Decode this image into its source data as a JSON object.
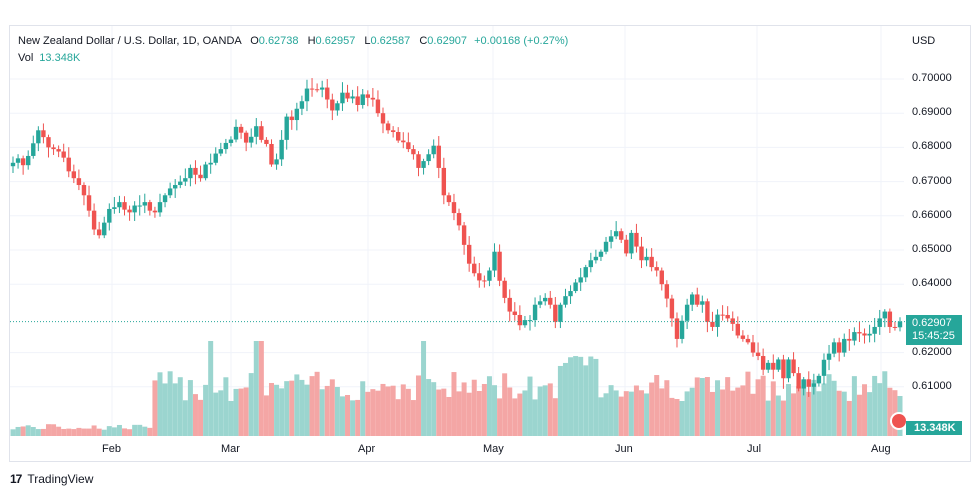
{
  "header": {
    "symbol": "New Zealand Dollar / U.S. Dollar, 1D, OANDA",
    "o_label": "O",
    "o_value": "0.62738",
    "h_label": "H",
    "h_value": "0.62957",
    "l_label": "L",
    "l_value": "0.62587",
    "c_label": "C",
    "c_value": "0.62907",
    "change": "+0.00168 (+0.27%)"
  },
  "volume": {
    "label": "Vol",
    "value": "13.348K"
  },
  "axis": {
    "currency": "USD",
    "y_ticks": [
      "0.70000",
      "0.69000",
      "0.68000",
      "0.67000",
      "0.66000",
      "0.65000",
      "0.64000",
      "0.62000",
      "0.61000"
    ],
    "x_ticks": [
      "Feb",
      "Mar",
      "Apr",
      "May",
      "Jun",
      "Jul",
      "Aug"
    ]
  },
  "price_tag": {
    "price": "0.62907",
    "countdown": "15:45:25"
  },
  "volume_tag": "13.348K",
  "brand": {
    "logo": "17",
    "name": "TradingView"
  },
  "colors": {
    "up": "#26a69a",
    "down": "#ef5350",
    "up_vol": "#9bd5cf",
    "down_vol": "#f4a6a5",
    "grid": "#f0f3fa"
  },
  "chart_data": {
    "type": "candlestick",
    "ylim": [
      0.6055,
      0.7045
    ],
    "y_ticks": [
      0.7,
      0.69,
      0.68,
      0.67,
      0.66,
      0.65,
      0.64,
      0.62,
      0.61
    ],
    "last_close": 0.62907,
    "closes": [
      0.6755,
      0.6768,
      0.6748,
      0.6775,
      0.6812,
      0.685,
      0.683,
      0.68,
      0.6795,
      0.6788,
      0.677,
      0.673,
      0.671,
      0.669,
      0.666,
      0.6615,
      0.656,
      0.6543,
      0.658,
      0.662,
      0.6625,
      0.664,
      0.6618,
      0.661,
      0.663,
      0.663,
      0.664,
      0.6615,
      0.661,
      0.664,
      0.666,
      0.668,
      0.669,
      0.67,
      0.671,
      0.674,
      0.672,
      0.671,
      0.675,
      0.6755,
      0.6782,
      0.6795,
      0.6813,
      0.6823,
      0.686,
      0.6843,
      0.6814,
      0.6831,
      0.6862,
      0.6822,
      0.681,
      0.675,
      0.6765,
      0.6822,
      0.689,
      0.688,
      0.6913,
      0.6935,
      0.6972,
      0.697,
      0.6969,
      0.6975,
      0.694,
      0.6908,
      0.6929,
      0.696,
      0.6943,
      0.6949,
      0.6924,
      0.6955,
      0.6945,
      0.694,
      0.69,
      0.687,
      0.685,
      0.6845,
      0.682,
      0.6815,
      0.6795,
      0.678,
      0.674,
      0.676,
      0.678,
      0.6805,
      0.674,
      0.666,
      0.664,
      0.6608,
      0.6572,
      0.6515,
      0.646,
      0.6432,
      0.6411,
      0.641,
      0.644,
      0.6495,
      0.641,
      0.636,
      0.632,
      0.631,
      0.628,
      0.6295,
      0.6295,
      0.634,
      0.635,
      0.636,
      0.634,
      0.629,
      0.634,
      0.6365,
      0.638,
      0.6405,
      0.642,
      0.645,
      0.647,
      0.648,
      0.6495,
      0.6524,
      0.654,
      0.6555,
      0.653,
      0.649,
      0.655,
      0.651,
      0.647,
      0.648,
      0.645,
      0.644,
      0.64,
      0.6358,
      0.63,
      0.624,
      0.6293,
      0.634,
      0.637,
      0.634,
      0.635,
      0.629,
      0.6275,
      0.6311,
      0.631,
      0.63,
      0.6284,
      0.625,
      0.624,
      0.623,
      0.62,
      0.619,
      0.615,
      0.617,
      0.615,
      0.618,
      0.6125,
      0.618,
      0.614,
      0.6095,
      0.6122,
      0.61,
      0.611,
      0.6132,
      0.6179,
      0.6197,
      0.623,
      0.62,
      0.624,
      0.6235,
      0.626,
      0.6256,
      0.625,
      0.6255,
      0.6275,
      0.63,
      0.632,
      0.6275,
      0.6274,
      0.6291
    ]
  }
}
